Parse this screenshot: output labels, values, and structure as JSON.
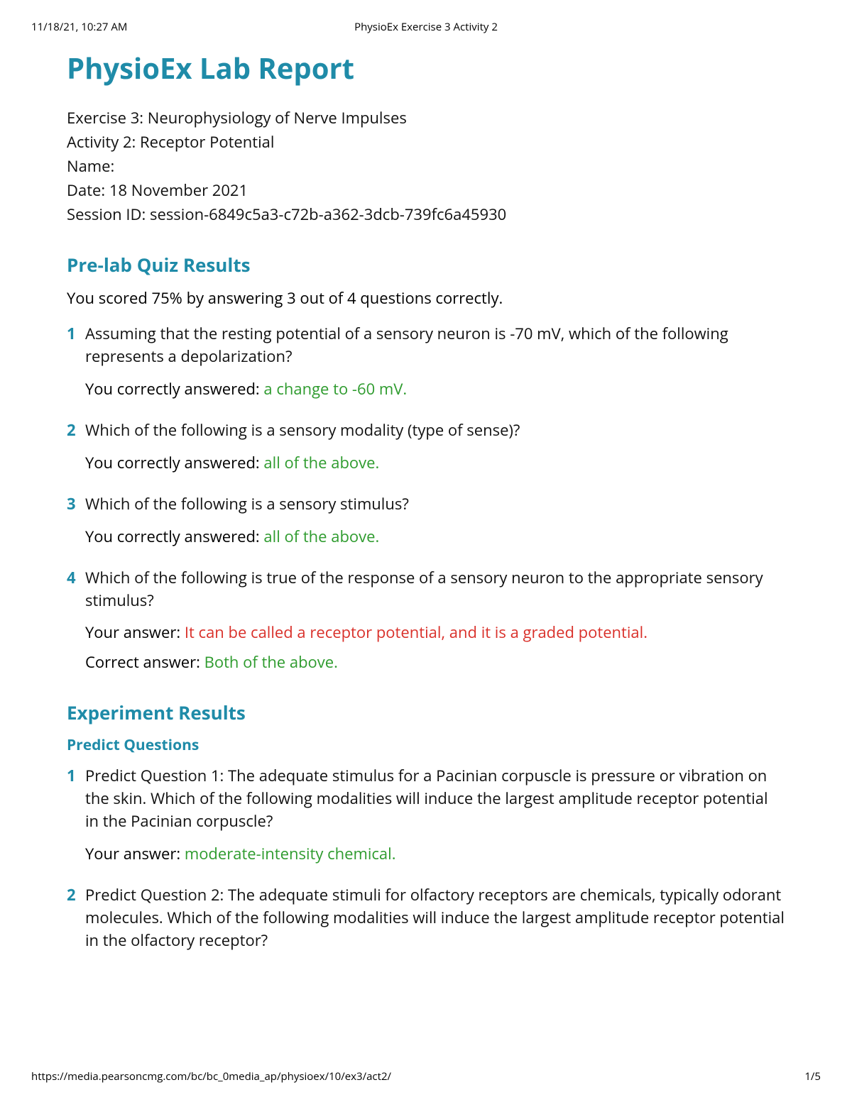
{
  "colors": {
    "heading": "#1f8ba8",
    "correct": "#2e9b2e",
    "incorrect": "#d9302a",
    "text": "#111111",
    "background": "#ffffff"
  },
  "typography": {
    "title_fontsize": 40,
    "section_fontsize": 26,
    "sub_fontsize": 21,
    "body_fontsize": 22,
    "header_fontsize": 15
  },
  "header": {
    "timestamp": "11/18/21, 10:27 AM",
    "doc_title": "PhysioEx Exercise 3 Activity 2"
  },
  "title": "PhysioEx Lab Report",
  "meta": {
    "exercise": "Exercise 3: Neurophysiology of Nerve Impulses",
    "activity": "Activity 2: Receptor Potential",
    "name_label": "Name:",
    "date": "Date: 18 November 2021",
    "session": "Session ID: session-6849c5a3-c72b-a362-3dcb-739fc6a45930"
  },
  "prelab": {
    "heading": "Pre-lab Quiz Results",
    "score_line": "You scored 75% by answering 3 out of 4 questions correctly.",
    "questions": [
      {
        "num": "1",
        "text": "Assuming that the resting potential of a sensory neuron is -70 mV, which of the following represents a depolarization?",
        "answers": [
          {
            "prefix": "You correctly answered: ",
            "value": "a change to -60 mV.",
            "status": "correct"
          }
        ]
      },
      {
        "num": "2",
        "text": "Which of the following is a sensory modality (type of sense)?",
        "answers": [
          {
            "prefix": "You correctly answered: ",
            "value": "all of the above.",
            "status": "correct"
          }
        ]
      },
      {
        "num": "3",
        "text": "Which of the following is a sensory stimulus?",
        "answers": [
          {
            "prefix": "You correctly answered: ",
            "value": "all of the above.",
            "status": "correct"
          }
        ]
      },
      {
        "num": "4",
        "text": "Which of the following is true of the response of a sensory neuron to the appropriate sensory stimulus?",
        "answers": [
          {
            "prefix": "Your answer: ",
            "value": "It can be called a receptor potential, and it is a graded potential.",
            "status": "incorrect"
          },
          {
            "prefix": "Correct answer: ",
            "value": "Both of the above.",
            "status": "correct"
          }
        ]
      }
    ]
  },
  "experiment": {
    "heading": "Experiment Results",
    "predict_heading": "Predict Questions",
    "questions": [
      {
        "num": "1",
        "text": "Predict Question 1: The adequate stimulus for a Pacinian corpuscle is pressure or vibration on the skin. Which of the following modalities will induce the largest amplitude receptor potential in the Pacinian corpuscle?",
        "answers": [
          {
            "prefix": "Your answer: ",
            "value": "moderate-intensity chemical.",
            "status": "correct"
          }
        ]
      },
      {
        "num": "2",
        "text": "Predict Question 2: The adequate stimuli for olfactory receptors are chemicals, typically odorant molecules. Which of the following modalities will induce the largest amplitude receptor potential in the olfactory receptor?",
        "answers": []
      }
    ]
  },
  "footer": {
    "url": "https://media.pearsoncmg.com/bc/bc_0media_ap/physioex/10/ex3/act2/",
    "page": "1/5"
  }
}
